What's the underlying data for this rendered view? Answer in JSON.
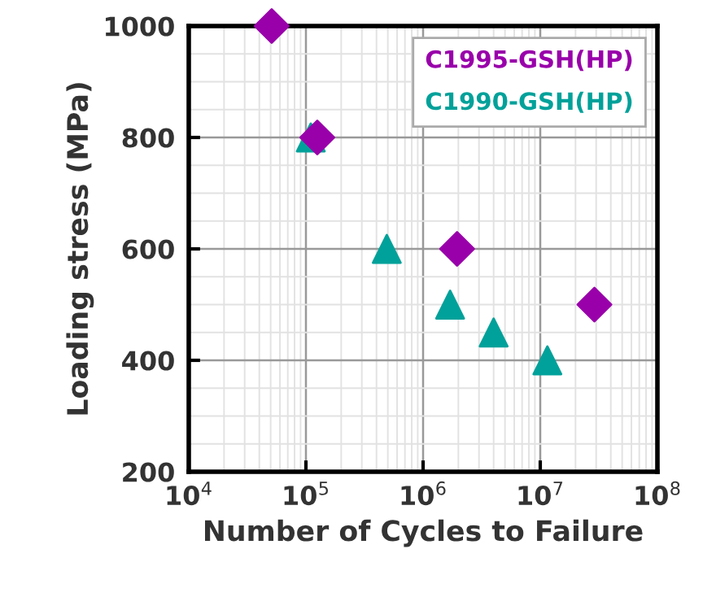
{
  "chart_data": {
    "type": "scatter",
    "xlabel": "Number of Cycles to Failure",
    "ylabel": "Loading stress (MPa)",
    "log": "x",
    "grid": true,
    "legend": "top right",
    "xlim": [
      10000,
      100000000
    ],
    "xticks": [
      {
        "value": 10000,
        "label": "10$^{4}$"
      },
      {
        "value": 100000,
        "label": "10$^{5}$"
      },
      {
        "value": 1000000,
        "label": "10$^{6}$"
      },
      {
        "value": 10000000,
        "label": "10$^{7}$"
      },
      {
        "value": 100000000,
        "label": "10$^{8}$"
      }
    ],
    "ylim": [
      200,
      1000
    ],
    "yticks": [
      200,
      400,
      600,
      800,
      1000
    ],
    "series": [
      {
        "name": "C1995-GSH(HP)",
        "color": "#9900aa",
        "marker": "diamond",
        "x": [
          51000,
          125000,
          1950000,
          29000000
        ],
        "values": [
          1000,
          800,
          600,
          500
        ]
      },
      {
        "name": "C1990-GSH(HP)",
        "color": "#00a19a",
        "marker": "triangle",
        "x": [
          110000,
          490000,
          1700000,
          4000000,
          11500000
        ],
        "values": [
          800,
          600,
          500,
          450,
          400
        ]
      }
    ]
  }
}
